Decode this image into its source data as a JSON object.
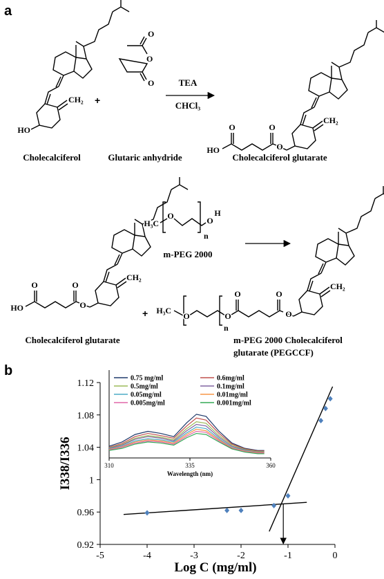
{
  "panel_a": {
    "label": "a",
    "plus_1": "+",
    "reagent_top": "TEA",
    "reagent_bottom": "CHCl₃",
    "name_1": "Cholecalciferol",
    "name_2": "Glutaric anhydride",
    "name_3": "Cholecalciferol glutarate",
    "plus_2": "+",
    "name_4": "m-PEG 2000",
    "name_5": "Cholecalciferol glutarate",
    "name_6_line1": "m-PEG 2000 Cholecalciferol",
    "name_6_line2": "glutarate (PEGCCF)",
    "atoms": [
      "HO",
      "CH₂",
      "O",
      "O",
      "O",
      "HO",
      "O",
      "O",
      "O",
      "CH₂",
      "O",
      "HO",
      "O",
      "O",
      "CH₂",
      "H₃C",
      "O",
      "O",
      "H",
      "n",
      "H₃C",
      "O",
      "O",
      "O",
      "O",
      "O",
      "n",
      "CH₂"
    ]
  },
  "chart_data": {
    "type": "scatter",
    "label": "b",
    "xlabel": "Log C (mg/ml)",
    "ylabel": "I338/I336",
    "x": [
      -4,
      -2.3,
      -2,
      -1.3,
      -1,
      -0.3,
      -0.2,
      -0.1
    ],
    "values": [
      0.959,
      0.962,
      0.962,
      0.968,
      0.98,
      1.073,
      1.088,
      1.1
    ],
    "color": "#4f81bd",
    "xlim": [
      -5,
      0
    ],
    "xticks": [
      -5,
      -4,
      -3,
      -2,
      -1,
      0
    ],
    "ylim": [
      0.92,
      1.12
    ],
    "yticks": [
      0.92,
      0.96,
      1,
      1.04,
      1.08,
      1.12
    ],
    "fit_lines": [
      {
        "x": [
          -4.5,
          -0.6
        ],
        "y": [
          0.957,
          0.972
        ]
      },
      {
        "x": [
          -1.4,
          -0.05
        ],
        "y": [
          0.936,
          1.115
        ]
      }
    ],
    "arrow": {
      "x": [
        -1.1,
        -1.1
      ],
      "y": [
        0.97,
        0.92
      ]
    },
    "inset": {
      "type": "line",
      "xlabel": "Wavelength (nm)",
      "x": [
        310,
        314,
        318,
        322,
        326,
        330,
        334,
        337,
        340,
        344,
        348,
        352,
        356,
        358
      ],
      "xlim": [
        310,
        360
      ],
      "xticks": [
        310,
        335,
        360
      ],
      "ylim": [
        0,
        100
      ],
      "series": [
        {
          "name": "0.75 mg/ml",
          "color": "#1f3a6b",
          "values": [
            22,
            30,
            44,
            50,
            46,
            40,
            66,
            82,
            78,
            50,
            28,
            18,
            14,
            14
          ]
        },
        {
          "name": "0.6mg/ml",
          "color": "#c0504d",
          "values": [
            20,
            27,
            40,
            46,
            42,
            37,
            60,
            75,
            71,
            46,
            26,
            17,
            13,
            13
          ]
        },
        {
          "name": "0.5mg/ml",
          "color": "#9bbb59",
          "values": [
            19,
            25,
            37,
            42,
            39,
            34,
            55,
            68,
            65,
            42,
            24,
            16,
            12,
            12
          ]
        },
        {
          "name": "0.1mg/ml",
          "color": "#8064a2",
          "values": [
            18,
            24,
            35,
            40,
            37,
            32,
            51,
            63,
            60,
            39,
            22,
            15,
            11,
            11
          ]
        },
        {
          "name": "0.05mg/ml",
          "color": "#4bacc6",
          "values": [
            17,
            22,
            32,
            36,
            34,
            30,
            47,
            58,
            55,
            36,
            20,
            14,
            10,
            10
          ]
        },
        {
          "name": "0.01mg/ml",
          "color": "#f79646",
          "values": [
            16,
            21,
            30,
            34,
            32,
            28,
            44,
            54,
            51,
            34,
            19,
            13,
            10,
            10
          ]
        },
        {
          "name": "0.005mg/ml",
          "color": "#e066a8",
          "values": [
            15,
            20,
            28,
            32,
            30,
            26,
            41,
            50,
            48,
            32,
            18,
            12,
            9,
            9
          ]
        },
        {
          "name": "0.001mg/ml",
          "color": "#33aa55",
          "values": [
            14,
            18,
            26,
            30,
            28,
            24,
            38,
            46,
            44,
            30,
            17,
            11,
            8,
            8
          ]
        }
      ]
    }
  }
}
